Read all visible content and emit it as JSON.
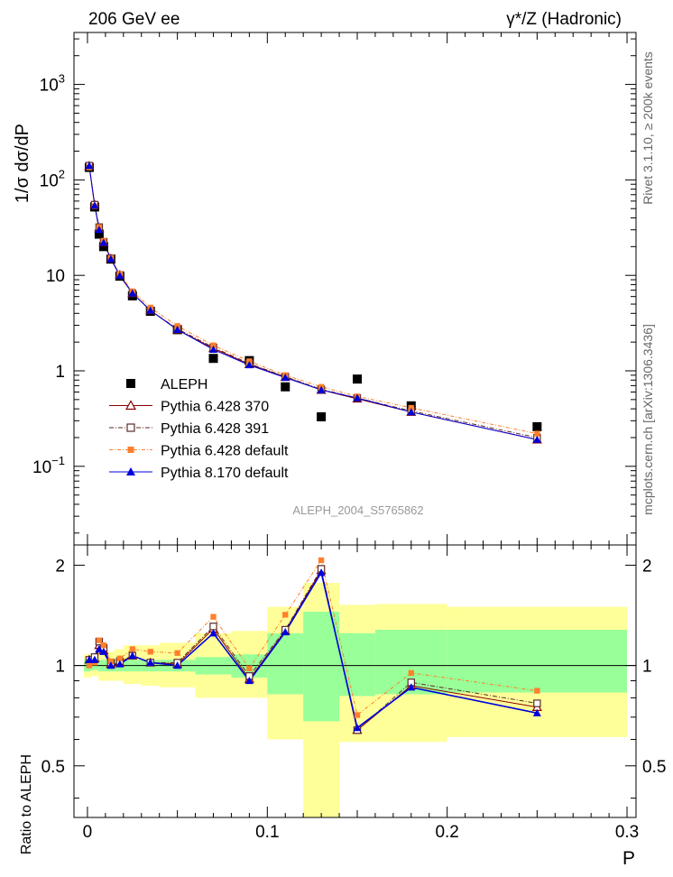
{
  "header": {
    "left": "206 GeV ee",
    "right": "γ*/Z (Hadronic)"
  },
  "side_text": {
    "rivet": "Rivet 3.1.10, ≥ 200k events",
    "mcplots": "mcplots.cern.ch [arXiv:1306.3436]"
  },
  "watermark": "ALEPH_2004_S5765862",
  "colors": {
    "aleph": "#000000",
    "p370": "#8b0000",
    "p391": "#5b2a2a",
    "p6def": "#ff7f2a",
    "p8": "#0000dd",
    "band_total": "#ffff99",
    "band_stat": "#99ff99"
  },
  "chart_data": [
    {
      "type": "scatter",
      "ylabel": "1/σ  dσ/dP",
      "yscale": "log",
      "ylim": [
        0.015,
        3500
      ],
      "xlim": [
        -0.0075,
        0.305
      ],
      "y_ticks": [
        {
          "v": 1000,
          "base": "10",
          "exp": "3"
        },
        {
          "v": 100,
          "base": "10",
          "exp": "2"
        },
        {
          "v": 10,
          "base": "10",
          "exp": ""
        },
        {
          "v": 1,
          "base": "1",
          "exp": ""
        },
        {
          "v": 0.1,
          "base": "10",
          "exp": "−1"
        }
      ],
      "series": [
        {
          "name": "ALEPH",
          "key": "aleph",
          "style": "data",
          "x": [
            0.001,
            0.004,
            0.0065,
            0.009,
            0.013,
            0.018,
            0.025,
            0.035,
            0.05,
            0.07,
            0.09,
            0.11,
            0.13,
            0.15,
            0.18,
            0.25
          ],
          "y": [
            135,
            52,
            27,
            20,
            14.8,
            9.8,
            6.1,
            4.2,
            2.7,
            1.35,
            1.28,
            0.68,
            0.33,
            0.82,
            0.43,
            0.26
          ]
        },
        {
          "name": "Pythia 6.428 370",
          "key": "p370",
          "style": "open-triangle",
          "x": [
            0.001,
            0.004,
            0.0065,
            0.009,
            0.013,
            0.018,
            0.025,
            0.035,
            0.05,
            0.07,
            0.09,
            0.11,
            0.13,
            0.15,
            0.18,
            0.25
          ],
          "y": [
            140,
            55,
            31,
            22,
            15.0,
            10.1,
            6.5,
            4.3,
            2.7,
            1.72,
            1.17,
            0.86,
            0.63,
            0.51,
            0.37,
            0.19
          ]
        },
        {
          "name": "Pythia 6.428 391",
          "key": "p391",
          "style": "open-square",
          "x": [
            0.001,
            0.004,
            0.0065,
            0.009,
            0.013,
            0.018,
            0.025,
            0.035,
            0.05,
            0.07,
            0.09,
            0.11,
            0.13,
            0.15,
            0.18,
            0.25
          ],
          "y": [
            141,
            55,
            32,
            22.5,
            15.0,
            10.1,
            6.5,
            4.3,
            2.75,
            1.76,
            1.19,
            0.87,
            0.64,
            0.52,
            0.38,
            0.2
          ]
        },
        {
          "name": "Pythia 6.428 default",
          "key": "p6def",
          "style": "filled-square",
          "x": [
            0.001,
            0.004,
            0.0065,
            0.009,
            0.013,
            0.018,
            0.025,
            0.035,
            0.05,
            0.07,
            0.09,
            0.11,
            0.13,
            0.15,
            0.18,
            0.25
          ],
          "y": [
            135,
            53,
            32,
            23,
            15.2,
            10.3,
            6.8,
            4.6,
            2.95,
            1.85,
            1.26,
            0.9,
            0.68,
            0.54,
            0.41,
            0.22
          ]
        },
        {
          "name": "Pythia 8.170 default",
          "key": "p8",
          "style": "filled-triangle",
          "x": [
            0.001,
            0.004,
            0.0065,
            0.009,
            0.013,
            0.018,
            0.025,
            0.035,
            0.05,
            0.07,
            0.09,
            0.11,
            0.13,
            0.15,
            0.18,
            0.25
          ],
          "y": [
            141,
            54,
            30,
            22,
            14.8,
            9.9,
            6.5,
            4.3,
            2.7,
            1.67,
            1.15,
            0.85,
            0.63,
            0.52,
            0.37,
            0.19
          ]
        }
      ]
    },
    {
      "type": "line",
      "ylabel": "Ratio to ALEPH",
      "xlabel": "P",
      "yscale": "log",
      "ylim": [
        0.35,
        2.3
      ],
      "xlim": [
        -0.0075,
        0.305
      ],
      "y_ticks": [
        {
          "v": 2,
          "label": "2"
        },
        {
          "v": 1,
          "label": "1"
        },
        {
          "v": 0.5,
          "label": "0.5"
        }
      ],
      "x_ticks": [
        {
          "v": 0,
          "label": "0"
        },
        {
          "v": 0.1,
          "label": "0.1"
        },
        {
          "v": 0.2,
          "label": "0.2"
        },
        {
          "v": 0.3,
          "label": "0.3"
        }
      ],
      "bands": [
        {
          "x0": -0.002,
          "x1": 0.002,
          "total": [
            0.92,
            1.08
          ],
          "stat": [
            0.96,
            1.04
          ]
        },
        {
          "x0": 0.002,
          "x1": 0.006,
          "total": [
            0.93,
            1.07
          ],
          "stat": [
            0.97,
            1.03
          ]
        },
        {
          "x0": 0.006,
          "x1": 0.01,
          "total": [
            0.9,
            1.1
          ],
          "stat": [
            0.96,
            1.04
          ]
        },
        {
          "x0": 0.01,
          "x1": 0.015,
          "total": [
            0.9,
            1.1
          ],
          "stat": [
            0.96,
            1.04
          ]
        },
        {
          "x0": 0.015,
          "x1": 0.02,
          "total": [
            0.9,
            1.12
          ],
          "stat": [
            0.96,
            1.04
          ]
        },
        {
          "x0": 0.02,
          "x1": 0.03,
          "total": [
            0.88,
            1.15
          ],
          "stat": [
            0.96,
            1.04
          ]
        },
        {
          "x0": 0.03,
          "x1": 0.04,
          "total": [
            0.87,
            1.15
          ],
          "stat": [
            0.96,
            1.04
          ]
        },
        {
          "x0": 0.04,
          "x1": 0.06,
          "total": [
            0.86,
            1.17
          ],
          "stat": [
            0.96,
            1.04
          ]
        },
        {
          "x0": 0.06,
          "x1": 0.08,
          "total": [
            0.8,
            1.25
          ],
          "stat": [
            0.94,
            1.06
          ]
        },
        {
          "x0": 0.08,
          "x1": 0.1,
          "total": [
            0.8,
            1.27
          ],
          "stat": [
            0.92,
            1.08
          ]
        },
        {
          "x0": 0.1,
          "x1": 0.12,
          "total": [
            0.6,
            1.5
          ],
          "stat": [
            0.82,
            1.25
          ]
        },
        {
          "x0": 0.12,
          "x1": 0.14,
          "total": [
            0.35,
            1.77
          ],
          "stat": [
            0.68,
            1.45
          ]
        },
        {
          "x0": 0.14,
          "x1": 0.16,
          "total": [
            0.59,
            1.52
          ],
          "stat": [
            0.81,
            1.25
          ]
        },
        {
          "x0": 0.16,
          "x1": 0.2,
          "total": [
            0.59,
            1.53
          ],
          "stat": [
            0.82,
            1.28
          ]
        },
        {
          "x0": 0.2,
          "x1": 0.3,
          "total": [
            0.61,
            1.5
          ],
          "stat": [
            0.83,
            1.28
          ]
        }
      ],
      "series": [
        {
          "name": "Pythia 6.428 370",
          "key": "p370",
          "style": "open-triangle",
          "x": [
            0.001,
            0.004,
            0.0065,
            0.009,
            0.013,
            0.018,
            0.025,
            0.035,
            0.05,
            0.07,
            0.09,
            0.11,
            0.13,
            0.15,
            0.18,
            0.25
          ],
          "y": [
            1.04,
            1.05,
            1.15,
            1.11,
            1.01,
            1.02,
            1.07,
            1.02,
            1.01,
            1.29,
            0.91,
            1.27,
            1.93,
            0.64,
            0.87,
            0.75
          ]
        },
        {
          "name": "Pythia 6.428 391",
          "key": "p391",
          "style": "open-square",
          "x": [
            0.001,
            0.004,
            0.0065,
            0.009,
            0.013,
            0.018,
            0.025,
            0.035,
            0.05,
            0.07,
            0.09,
            0.11,
            0.13,
            0.15,
            0.18,
            0.25
          ],
          "y": [
            1.04,
            1.06,
            1.18,
            1.13,
            1.02,
            1.03,
            1.07,
            1.02,
            1.02,
            1.31,
            0.93,
            1.28,
            1.95,
            0.64,
            0.89,
            0.77
          ]
        },
        {
          "name": "Pythia 6.428 default",
          "key": "p6def",
          "style": "filled-square",
          "x": [
            0.001,
            0.004,
            0.0065,
            0.009,
            0.013,
            0.018,
            0.025,
            0.035,
            0.05,
            0.07,
            0.09,
            0.11,
            0.13,
            0.15,
            0.18,
            0.25
          ],
          "y": [
            1.0,
            1.02,
            1.19,
            1.15,
            1.03,
            1.05,
            1.12,
            1.1,
            1.09,
            1.4,
            0.98,
            1.42,
            2.07,
            0.71,
            0.95,
            0.84
          ]
        },
        {
          "name": "Pythia 8.170 default",
          "key": "p8",
          "style": "filled-triangle",
          "x": [
            0.001,
            0.004,
            0.0065,
            0.009,
            0.013,
            0.018,
            0.025,
            0.035,
            0.05,
            0.07,
            0.09,
            0.11,
            0.13,
            0.15,
            0.18,
            0.25
          ],
          "y": [
            1.04,
            1.04,
            1.12,
            1.1,
            1.0,
            1.01,
            1.07,
            1.02,
            1.0,
            1.25,
            0.9,
            1.26,
            1.9,
            0.65,
            0.86,
            0.72
          ]
        }
      ]
    }
  ]
}
